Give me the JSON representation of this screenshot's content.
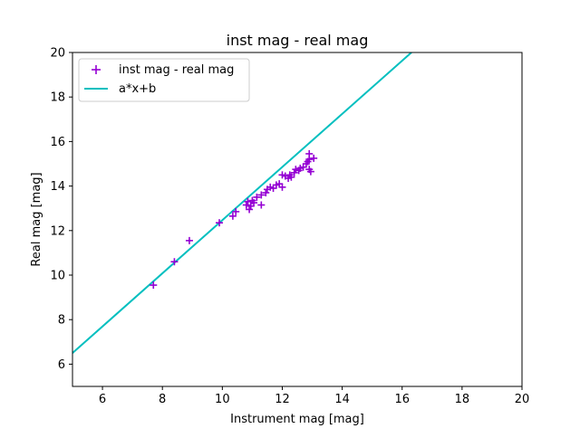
{
  "chart_data": {
    "type": "scatter",
    "title": "inst mag - real mag",
    "xlabel": "Instrument mag [mag]",
    "ylabel": "Real mag [mag]",
    "xlim": [
      5,
      20
    ],
    "ylim": [
      5,
      20
    ],
    "xticks": [
      6,
      8,
      10,
      12,
      14,
      16,
      18,
      20
    ],
    "yticks": [
      6,
      8,
      10,
      12,
      14,
      16,
      18,
      20
    ],
    "grid": false,
    "legend_position": "top-left",
    "series": [
      {
        "name": "inst mag - real mag",
        "kind": "scatter",
        "marker": "plus",
        "color": "#9400d3",
        "points": [
          [
            7.7,
            9.55
          ],
          [
            8.4,
            10.6
          ],
          [
            8.9,
            11.55
          ],
          [
            9.9,
            12.35
          ],
          [
            10.35,
            12.65
          ],
          [
            10.45,
            12.85
          ],
          [
            10.8,
            13.15
          ],
          [
            10.85,
            13.3
          ],
          [
            10.9,
            12.95
          ],
          [
            10.95,
            13.1
          ],
          [
            11.0,
            13.35
          ],
          [
            11.05,
            13.25
          ],
          [
            11.15,
            13.5
          ],
          [
            11.3,
            13.6
          ],
          [
            11.3,
            13.15
          ],
          [
            11.45,
            13.7
          ],
          [
            11.5,
            13.85
          ],
          [
            11.6,
            13.95
          ],
          [
            11.7,
            13.9
          ],
          [
            11.8,
            14.05
          ],
          [
            11.9,
            14.1
          ],
          [
            12.0,
            13.95
          ],
          [
            12.0,
            14.5
          ],
          [
            12.1,
            14.45
          ],
          [
            12.2,
            14.35
          ],
          [
            12.25,
            14.5
          ],
          [
            12.3,
            14.4
          ],
          [
            12.4,
            14.6
          ],
          [
            12.45,
            14.75
          ],
          [
            12.55,
            14.7
          ],
          [
            12.6,
            14.8
          ],
          [
            12.7,
            14.85
          ],
          [
            12.8,
            15.0
          ],
          [
            12.85,
            15.1
          ],
          [
            12.9,
            14.75
          ],
          [
            12.9,
            15.2
          ],
          [
            12.95,
            14.65
          ],
          [
            12.9,
            15.45
          ],
          [
            13.05,
            15.25
          ]
        ]
      },
      {
        "name": "a*x+b",
        "kind": "line",
        "color": "#00bfbf",
        "x": [
          5,
          16.31
        ],
        "y": [
          6.5,
          20
        ]
      }
    ]
  }
}
